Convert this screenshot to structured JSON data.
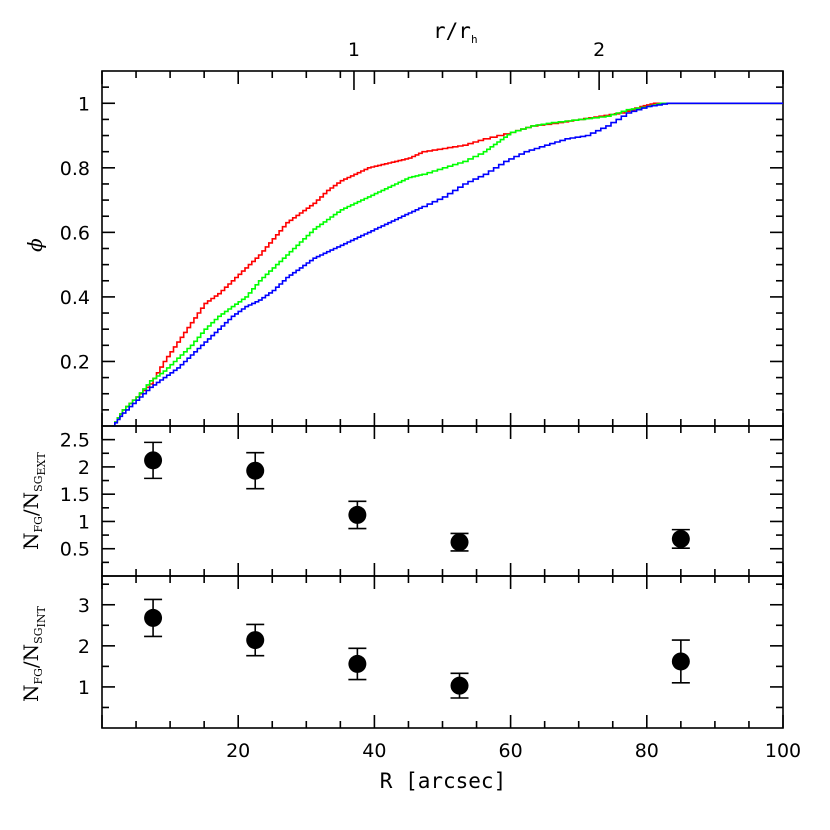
{
  "chart_data": [
    {
      "panel": "top",
      "type": "line",
      "ylabel": "ϕ",
      "top_axis_label": {
        "main": "r/r",
        "sub": "h"
      },
      "top_axis_ticks": [
        {
          "label": "1",
          "R": 37
        },
        {
          "label": "2",
          "R": 73
        }
      ],
      "xlim": [
        0,
        100
      ],
      "ylim": [
        0,
        1.1
      ],
      "yticks": [
        "0.2",
        "0.4",
        "0.6",
        "0.8",
        "1"
      ],
      "series": [
        {
          "color": "#ff0000",
          "points": [
            [
              1.5,
              0
            ],
            [
              3,
              0.05
            ],
            [
              5,
              0.09
            ],
            [
              7,
              0.13
            ],
            [
              9,
              0.2
            ],
            [
              11,
              0.26
            ],
            [
              13,
              0.32
            ],
            [
              15,
              0.38
            ],
            [
              17,
              0.41
            ],
            [
              19,
              0.45
            ],
            [
              21,
              0.49
            ],
            [
              23,
              0.53
            ],
            [
              25,
              0.58
            ],
            [
              27,
              0.63
            ],
            [
              29,
              0.66
            ],
            [
              31,
              0.69
            ],
            [
              33,
              0.73
            ],
            [
              35,
              0.76
            ],
            [
              37,
              0.78
            ],
            [
              39,
              0.8
            ],
            [
              41,
              0.81
            ],
            [
              43,
              0.82
            ],
            [
              45,
              0.83
            ],
            [
              47,
              0.85
            ],
            [
              50,
              0.86
            ],
            [
              53,
              0.87
            ],
            [
              56,
              0.89
            ],
            [
              60,
              0.91
            ],
            [
              63,
              0.93
            ],
            [
              67,
              0.94
            ],
            [
              70,
              0.95
            ],
            [
              73,
              0.96
            ],
            [
              76,
              0.97
            ],
            [
              79,
              0.99
            ],
            [
              81,
              1
            ],
            [
              100,
              1
            ]
          ]
        },
        {
          "color": "#00ff00",
          "points": [
            [
              1.5,
              0
            ],
            [
              3,
              0.05
            ],
            [
              5,
              0.09
            ],
            [
              7,
              0.14
            ],
            [
              9,
              0.17
            ],
            [
              11,
              0.21
            ],
            [
              13,
              0.25
            ],
            [
              15,
              0.3
            ],
            [
              17,
              0.34
            ],
            [
              19,
              0.37
            ],
            [
              21,
              0.4
            ],
            [
              23,
              0.45
            ],
            [
              25,
              0.49
            ],
            [
              27,
              0.53
            ],
            [
              29,
              0.57
            ],
            [
              31,
              0.61
            ],
            [
              33,
              0.64
            ],
            [
              35,
              0.67
            ],
            [
              37,
              0.69
            ],
            [
              39,
              0.71
            ],
            [
              41,
              0.73
            ],
            [
              43,
              0.75
            ],
            [
              45,
              0.77
            ],
            [
              47,
              0.78
            ],
            [
              50,
              0.8
            ],
            [
              53,
              0.82
            ],
            [
              56,
              0.85
            ],
            [
              58,
              0.88
            ],
            [
              60,
              0.91
            ],
            [
              63,
              0.93
            ],
            [
              66,
              0.94
            ],
            [
              70,
              0.95
            ],
            [
              74,
              0.96
            ],
            [
              77,
              0.98
            ],
            [
              80,
              0.99
            ],
            [
              82,
              1
            ],
            [
              100,
              1
            ]
          ]
        },
        {
          "color": "#0000ff",
          "points": [
            [
              1.5,
              0
            ],
            [
              3,
              0.04
            ],
            [
              5,
              0.08
            ],
            [
              7,
              0.12
            ],
            [
              9,
              0.15
            ],
            [
              11,
              0.18
            ],
            [
              13,
              0.22
            ],
            [
              15,
              0.26
            ],
            [
              17,
              0.3
            ],
            [
              19,
              0.34
            ],
            [
              21,
              0.37
            ],
            [
              23,
              0.39
            ],
            [
              25,
              0.42
            ],
            [
              27,
              0.46
            ],
            [
              29,
              0.49
            ],
            [
              31,
              0.52
            ],
            [
              33,
              0.54
            ],
            [
              35,
              0.56
            ],
            [
              37,
              0.58
            ],
            [
              39,
              0.6
            ],
            [
              41,
              0.62
            ],
            [
              43,
              0.64
            ],
            [
              45,
              0.66
            ],
            [
              47,
              0.68
            ],
            [
              50,
              0.71
            ],
            [
              53,
              0.75
            ],
            [
              56,
              0.78
            ],
            [
              59,
              0.82
            ],
            [
              62,
              0.85
            ],
            [
              65,
              0.87
            ],
            [
              68,
              0.89
            ],
            [
              71,
              0.9
            ],
            [
              74,
              0.93
            ],
            [
              77,
              0.97
            ],
            [
              80,
              0.99
            ],
            [
              83,
              1
            ],
            [
              100,
              1
            ]
          ]
        }
      ]
    },
    {
      "panel": "middle",
      "type": "scatter",
      "ylabel": {
        "main": "N",
        "sub1": "FG",
        "mid": "/N",
        "sub2": "SG",
        "subsub": "EXT"
      },
      "xlim": [
        0,
        100
      ],
      "ylim": [
        0,
        2.75
      ],
      "yticks": [
        "0.5",
        "1",
        "1.5",
        "2",
        "2.5"
      ],
      "points": [
        {
          "x": 7.5,
          "y": 2.12,
          "err": 0.33
        },
        {
          "x": 22.5,
          "y": 1.93,
          "err": 0.33
        },
        {
          "x": 37.5,
          "y": 1.12,
          "err": 0.25
        },
        {
          "x": 52.5,
          "y": 0.62,
          "err": 0.16
        },
        {
          "x": 85,
          "y": 0.68,
          "err": 0.17
        }
      ]
    },
    {
      "panel": "bottom",
      "type": "scatter",
      "ylabel": {
        "main": "N",
        "sub1": "FG",
        "mid": "/N",
        "sub2": "SG",
        "subsub": "INT"
      },
      "xlim": [
        0,
        100
      ],
      "xlabel": "R [arcsec]",
      "xticks": [
        "20",
        "40",
        "60",
        "80",
        "100"
      ],
      "ylim": [
        0,
        3.7
      ],
      "yticks": [
        "1",
        "2",
        "3"
      ],
      "points": [
        {
          "x": 7.5,
          "y": 2.68,
          "err": 0.45
        },
        {
          "x": 22.5,
          "y": 2.14,
          "err": 0.38
        },
        {
          "x": 37.5,
          "y": 1.56,
          "err": 0.38
        },
        {
          "x": 52.5,
          "y": 1.03,
          "err": 0.3
        },
        {
          "x": 85,
          "y": 1.62,
          "err": 0.52
        }
      ]
    }
  ]
}
